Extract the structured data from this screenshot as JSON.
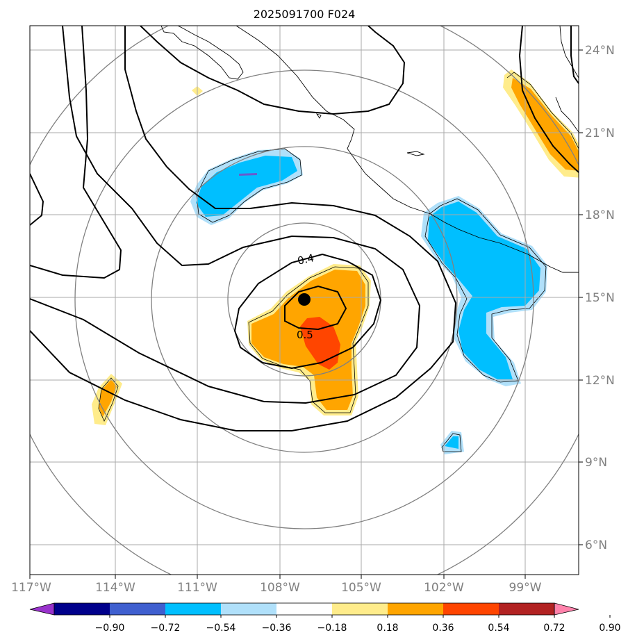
{
  "title": "2025091700 F024",
  "lon_labels": [
    "117°W",
    "114°W",
    "111°W",
    "108°W",
    "105°W",
    "102°W",
    "99°W"
  ],
  "lat_labels": [
    "24°N",
    "21°N",
    "18°N",
    "15°N",
    "12°N",
    "9°N",
    "6°N"
  ],
  "contour_labels": [
    "0.4",
    "0.5"
  ],
  "colorbar": {
    "ticks": [
      "−0.90",
      "−0.72",
      "−0.54",
      "−0.36",
      "−0.18",
      "0.18",
      "0.36",
      "0.54",
      "0.72",
      "0.90"
    ],
    "colors": [
      "#9932cc",
      "#00008b",
      "#3f5fcf",
      "#00bfff",
      "#b0e0fa",
      "#ffffff",
      "#ffec8b",
      "#ffa500",
      "#ff4500",
      "#b22222",
      "#ff82ab"
    ]
  },
  "colors": {
    "neg_strong": "#00bfff",
    "neg_light": "#b0e0fa",
    "pos_light": "#ffec8b",
    "pos_mid": "#ffa500",
    "pos_strong": "#ff4500",
    "grid": "#aaaaaa",
    "range_rings": "#808080"
  },
  "storm_center": {
    "lat": 15.0,
    "lon": -106.8
  }
}
